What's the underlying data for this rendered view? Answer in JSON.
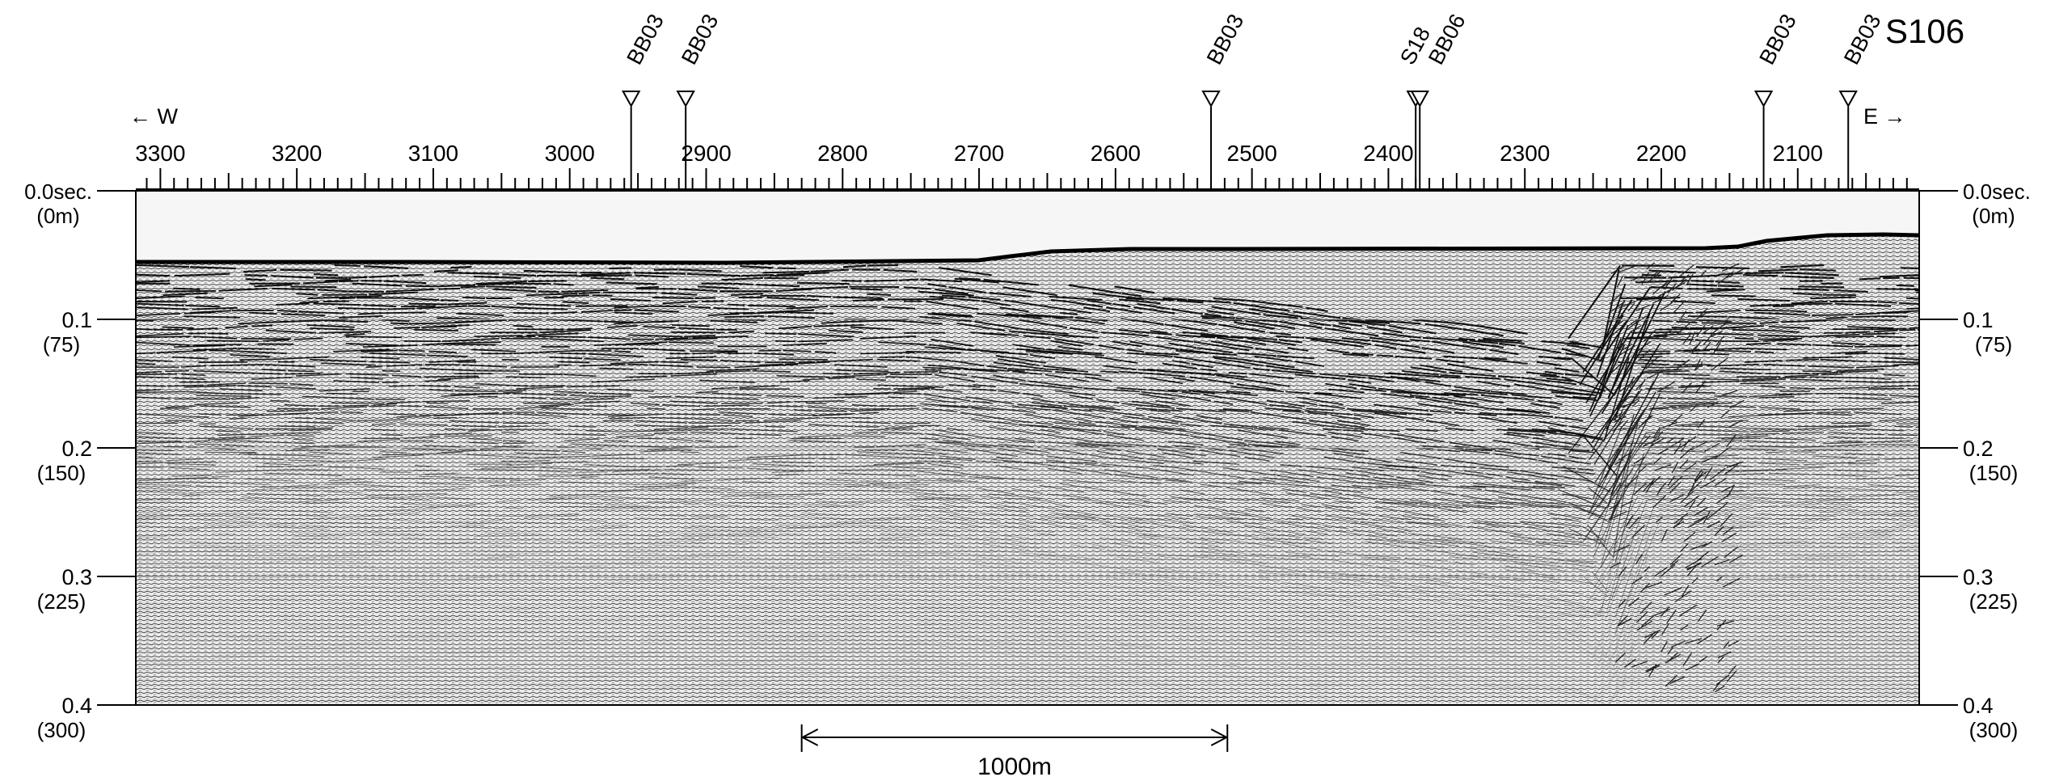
{
  "profile": {
    "id": "S106",
    "west_label": "← W",
    "east_label": "E →",
    "shotpoints": [
      3300,
      3200,
      3100,
      3000,
      2900,
      2800,
      2700,
      2600,
      2500,
      2400,
      2300,
      2200,
      2100
    ],
    "shotpoint_range": [
      3318,
      2011
    ],
    "boreholes": [
      {
        "name": "BB03",
        "shotpoint": 2955
      },
      {
        "name": "BB03",
        "shotpoint": 2915
      },
      {
        "name": "BB03",
        "shotpoint": 2530
      },
      {
        "name": "S18",
        "shotpoint": 2380
      },
      {
        "name": "BB06",
        "shotpoint": 2377
      },
      {
        "name": "BB03",
        "shotpoint": 2125
      },
      {
        "name": "BB03",
        "shotpoint": 2063
      }
    ]
  },
  "depth_axis": {
    "unit_label": "sec.",
    "range_sec": [
      0,
      0.4
    ],
    "ticks": [
      {
        "time": "0.0sec.",
        "depth": "(0m)",
        "value": 0.0
      },
      {
        "time": "0.1",
        "depth": "(75)",
        "value": 0.1
      },
      {
        "time": "0.2",
        "depth": "(150)",
        "value": 0.2
      },
      {
        "time": "0.3",
        "depth": "(225)",
        "value": 0.3
      },
      {
        "time": "0.4",
        "depth": "(300)",
        "value": 0.4
      }
    ]
  },
  "scale_bar": {
    "label": "1000m",
    "start_shotpoint": 2830,
    "end_shotpoint": 2518
  },
  "colors": {
    "frame": "#000000",
    "water": "#f6f6f6",
    "sediment_background": "#e8e8e8",
    "reflector": "#111111"
  }
}
